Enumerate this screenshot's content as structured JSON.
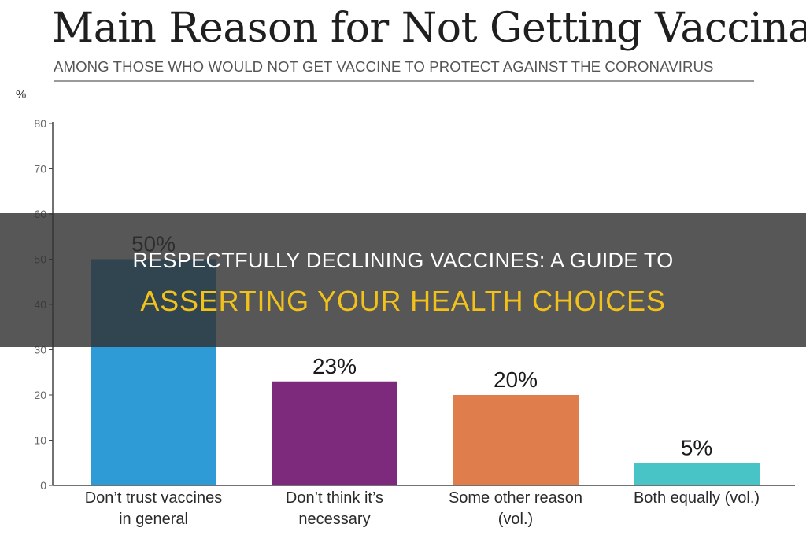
{
  "chart_data": {
    "type": "bar",
    "title": "Main Reason for Not Getting Vaccinated",
    "subtitle": "AMONG THOSE WHO WOULD NOT GET VACCINE TO PROTECT AGAINST THE CORONAVIRUS",
    "ylabel": "%",
    "xlabel": "",
    "ylim": [
      0,
      80
    ],
    "yticks": [
      "0",
      "10",
      "20",
      "30",
      "40",
      "50",
      "60",
      "70",
      "80"
    ],
    "grid": false,
    "categories": [
      [
        "Don’t trust vaccines",
        "in general"
      ],
      [
        "Don’t think it’s",
        "necessary"
      ],
      [
        "Some other reason",
        "(vol.)"
      ],
      [
        "Both equally (vol.)"
      ]
    ],
    "values": [
      50,
      23,
      20,
      5
    ],
    "data_labels": [
      "50%",
      "23%",
      "20%",
      "5%"
    ],
    "colors": [
      "#2e9ad6",
      "#7d2a7c",
      "#e07d4c",
      "#48c3c6"
    ]
  },
  "banner": {
    "line1": "RESPECTFULLY DECLINING VACCINES: A GUIDE TO",
    "line2": "ASSERTING YOUR HEALTH CHOICES",
    "text_color": "#ffffff",
    "accent_color": "#f2c21b"
  }
}
